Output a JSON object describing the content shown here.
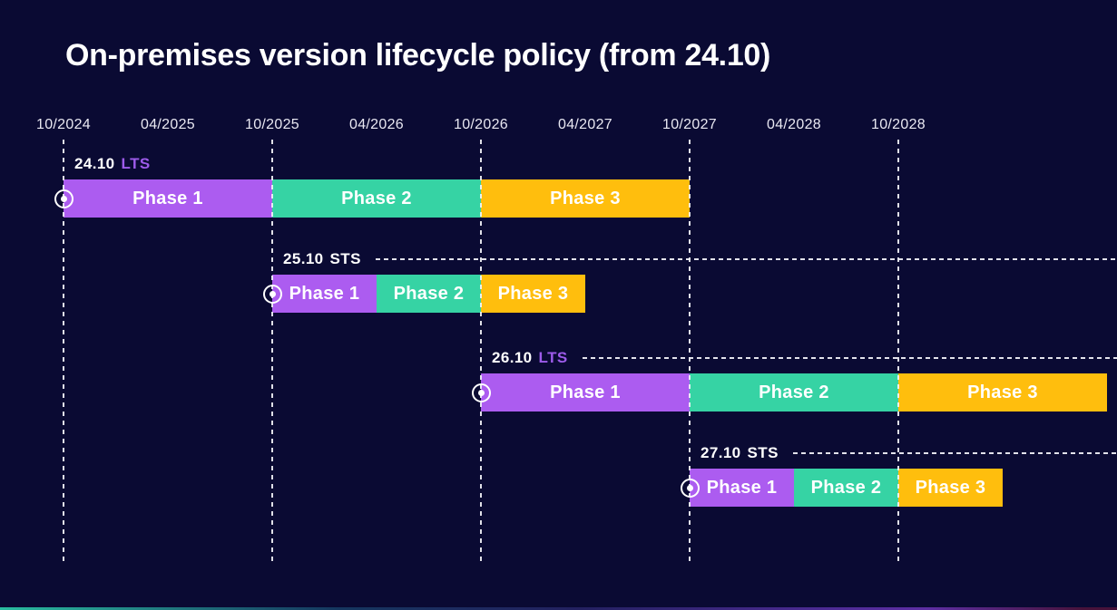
{
  "page": {
    "title": "On-premises version lifecycle policy (from 24.10)"
  },
  "colors": {
    "background": "#0A0A33",
    "title_text": "#FFFFFF",
    "axis_text": "#E9E8F2",
    "gridline": "#F2F2F8",
    "phase_colors": [
      "#AC5CF0",
      "#36D3A4",
      "#FFBE0D"
    ],
    "phase_text": "#FFFFFF",
    "release_text": "#FFFFFF",
    "lts_channel_text": "#9D5BEA",
    "sts_channel_text": "#FFFFFF",
    "marker": "#FFFFFF",
    "trail_line": "#EDEDF5",
    "bottom_strip_gradient": [
      "#2ABCA0",
      "#15375F",
      "#232060",
      "#4E2B96",
      "#5D2EA3",
      "#47123A"
    ]
  },
  "chart_data": {
    "type": "bar",
    "variant": "horizontal-gantt-timeline",
    "title": "On-premises version lifecycle policy (from 24.10)",
    "grid": "dashed vertical lines at October ticks only",
    "legend_position": "none",
    "x_axis": {
      "unit": "month/year",
      "origin": "10/2024",
      "ticks": [
        {
          "label": "10/2024",
          "date": "10/2024",
          "gridline": true
        },
        {
          "label": "04/2025",
          "date": "04/2025",
          "gridline": false
        },
        {
          "label": "10/2025",
          "date": "10/2025",
          "gridline": true
        },
        {
          "label": "04/2026",
          "date": "04/2026",
          "gridline": false
        },
        {
          "label": "10/2026",
          "date": "10/2026",
          "gridline": true
        },
        {
          "label": "04/2027",
          "date": "04/2027",
          "gridline": false
        },
        {
          "label": "10/2027",
          "date": "10/2027",
          "gridline": true
        },
        {
          "label": "04/2028",
          "date": "04/2028",
          "gridline": false
        },
        {
          "label": "10/2028",
          "date": "10/2028",
          "gridline": true
        }
      ]
    },
    "series": [
      {
        "release": "24.10",
        "channel": "LTS",
        "start_marker": true,
        "trailing_dashed_line": false,
        "phases": [
          {
            "label": "Phase 1",
            "start": "10/2024",
            "end": "10/2025"
          },
          {
            "label": "Phase 2",
            "start": "10/2025",
            "end": "10/2026"
          },
          {
            "label": "Phase 3",
            "start": "10/2026",
            "end": "10/2027"
          }
        ]
      },
      {
        "release": "25.10",
        "channel": "STS",
        "start_marker": true,
        "trailing_dashed_line": true,
        "phases": [
          {
            "label": "Phase 1",
            "start": "10/2025",
            "end": "04/2026"
          },
          {
            "label": "Phase 2",
            "start": "04/2026",
            "end": "10/2026"
          },
          {
            "label": "Phase 3",
            "start": "10/2026",
            "end": "04/2027"
          }
        ]
      },
      {
        "release": "26.10",
        "channel": "LTS",
        "start_marker": true,
        "trailing_dashed_line": true,
        "phases": [
          {
            "label": "Phase 1",
            "start": "10/2026",
            "end": "10/2027"
          },
          {
            "label": "Phase 2",
            "start": "10/2027",
            "end": "10/2028"
          },
          {
            "label": "Phase 3",
            "start": "10/2028",
            "end": "10/2029"
          }
        ]
      },
      {
        "release": "27.10",
        "channel": "STS",
        "start_marker": true,
        "trailing_dashed_line": true,
        "phases": [
          {
            "label": "Phase 1",
            "start": "10/2027",
            "end": "04/2028"
          },
          {
            "label": "Phase 2",
            "start": "04/2028",
            "end": "10/2028"
          },
          {
            "label": "Phase 3",
            "start": "10/2028",
            "end": "04/2029"
          }
        ]
      }
    ]
  }
}
